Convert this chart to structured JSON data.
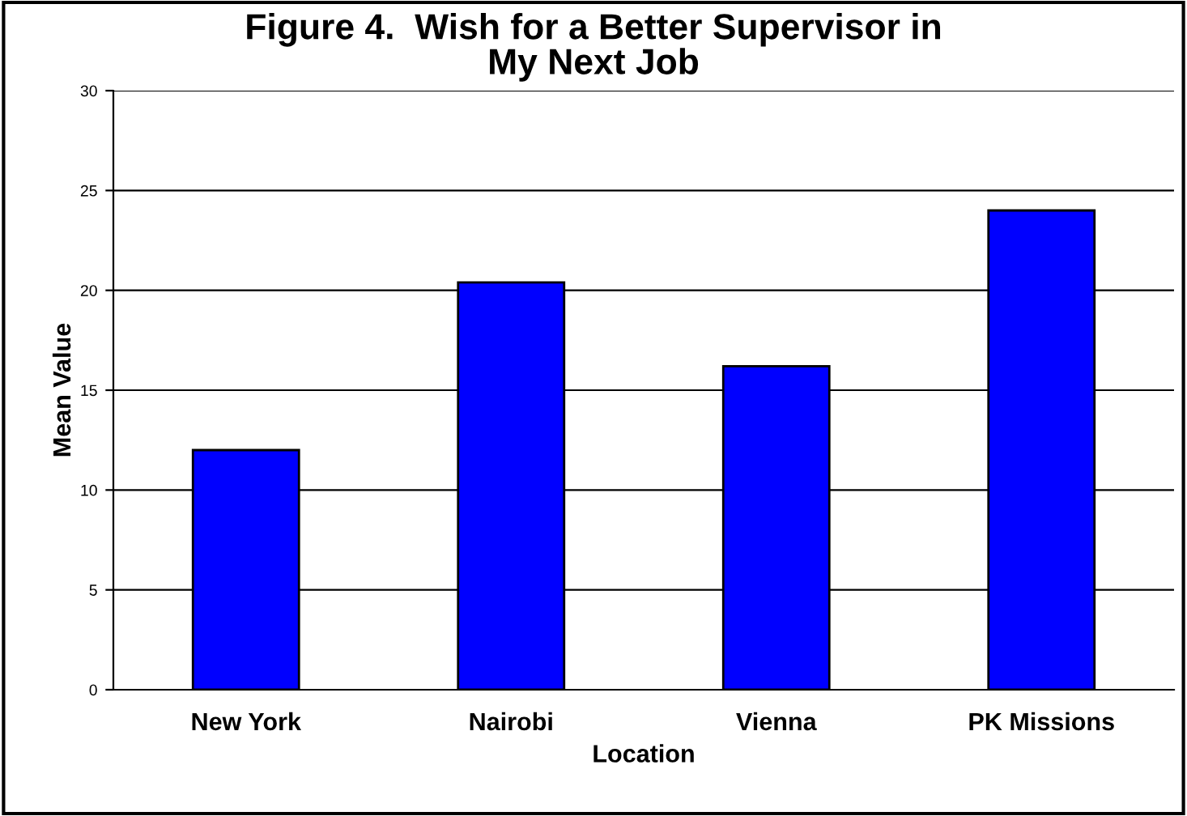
{
  "chart_data": {
    "type": "bar",
    "title": "Figure 4.  Wish for a Better Supervisor in\nMy Next Job",
    "xlabel": "Location",
    "ylabel": "Mean Value",
    "categories": [
      "New York",
      "Nairobi",
      "Vienna",
      "PK Missions"
    ],
    "values": [
      12,
      20.4,
      16.2,
      24
    ],
    "color": "#0000ff",
    "ylim": [
      0,
      30
    ],
    "yticks": [
      0,
      5,
      10,
      15,
      20,
      25,
      30
    ],
    "grid": "y"
  }
}
